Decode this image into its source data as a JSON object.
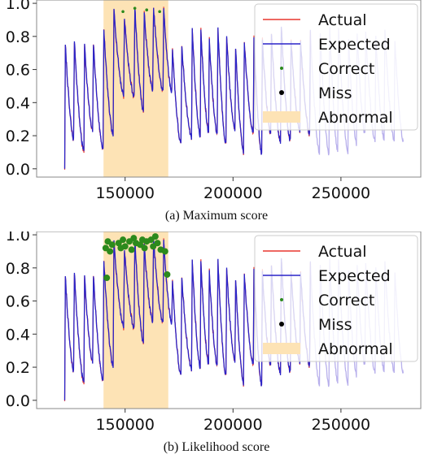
{
  "colors": {
    "actual": "#e8362e",
    "expected": "#2a24c8",
    "correct": "#2c8a1c",
    "miss": "#000000",
    "abnormal": "#fde3b5"
  },
  "chart_data": [
    {
      "type": "line",
      "caption": "(a) Maximum score",
      "xlim": [
        109000,
        287000
      ],
      "ylim": [
        -0.05,
        1.02
      ],
      "x_ticks": [
        150000,
        200000,
        250000
      ],
      "x_tick_labels": [
        "150000",
        "200000",
        "250000"
      ],
      "y_ticks": [
        0.0,
        0.2,
        0.4,
        0.6,
        0.8,
        1.0
      ],
      "y_tick_labels": [
        "0.0",
        "0.2",
        "0.4",
        "0.6",
        "0.8",
        "1.0"
      ],
      "series": [
        {
          "name": "Actual",
          "style": "line"
        },
        {
          "name": "Expected",
          "style": "line"
        },
        {
          "name": "Correct",
          "style": "marker"
        },
        {
          "name": "Miss",
          "style": "marker"
        },
        {
          "name": "Abnormal",
          "style": "span"
        }
      ],
      "abnormal_spans": [
        [
          140000,
          170000
        ]
      ],
      "correct_points": [
        [
          149000,
          0.95
        ],
        [
          154500,
          0.97
        ],
        [
          160000,
          0.96
        ],
        [
          166000,
          0.95
        ]
      ],
      "miss_points": [],
      "legend_position": "upper-right",
      "grid": false
    },
    {
      "type": "line",
      "caption": "(b) Likelihood score",
      "xlim": [
        109000,
        287000
      ],
      "ylim": [
        -0.05,
        1.02
      ],
      "x_ticks": [
        150000,
        200000,
        250000
      ],
      "x_tick_labels": [
        "150000",
        "200000",
        "250000"
      ],
      "y_ticks": [
        0.0,
        0.2,
        0.4,
        0.6,
        0.8,
        1.0
      ],
      "y_tick_labels": [
        "0.0",
        "0.2",
        "0.4",
        "0.6",
        "0.8",
        "1.0"
      ],
      "series": [
        {
          "name": "Actual",
          "style": "line"
        },
        {
          "name": "Expected",
          "style": "line"
        },
        {
          "name": "Correct",
          "style": "marker"
        },
        {
          "name": "Miss",
          "style": "marker"
        },
        {
          "name": "Abnormal",
          "style": "span"
        }
      ],
      "abnormal_spans": [
        [
          140000,
          170000
        ]
      ],
      "correct_points": [
        [
          141000,
          0.92
        ],
        [
          142000,
          0.96
        ],
        [
          143000,
          0.9
        ],
        [
          144000,
          0.94
        ],
        [
          147000,
          0.95
        ],
        [
          148000,
          0.92
        ],
        [
          149000,
          0.97
        ],
        [
          150000,
          0.93
        ],
        [
          152000,
          0.96
        ],
        [
          153000,
          0.91
        ],
        [
          154000,
          0.98
        ],
        [
          155000,
          0.95
        ],
        [
          157000,
          0.94
        ],
        [
          158000,
          0.97
        ],
        [
          159000,
          0.92
        ],
        [
          160000,
          0.96
        ],
        [
          162000,
          0.97
        ],
        [
          163000,
          0.93
        ],
        [
          164000,
          0.99
        ],
        [
          165000,
          0.95
        ],
        [
          166500,
          0.91
        ],
        [
          168500,
          0.9
        ],
        [
          141500,
          0.74
        ],
        [
          169500,
          0.76
        ]
      ],
      "miss_points": [],
      "legend_position": "upper-right",
      "grid": false
    }
  ]
}
